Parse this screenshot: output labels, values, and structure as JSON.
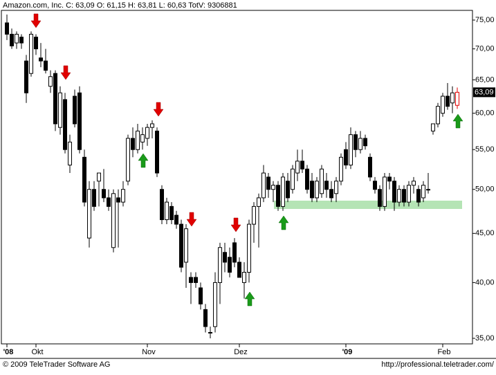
{
  "chart_data": {
    "type": "candlestick",
    "title": "Amazon.com, Inc. C: 63,09 O: 61,15 H: 63,81 L: 60,63 TotV: 9306881",
    "footer_left": "© 2009 TeleTrader Software AG",
    "footer_right": "http://professional.teletrader.com/",
    "log_scale": true,
    "ylim": [
      34.54,
      76.76
    ],
    "yticks": [
      {
        "value": 35,
        "label": "35,00"
      },
      {
        "value": 40,
        "label": "40,00"
      },
      {
        "value": 45,
        "label": "45,00"
      },
      {
        "value": 50,
        "label": "50,00"
      },
      {
        "value": 55,
        "label": "55,00"
      },
      {
        "value": 60,
        "label": "60,00"
      },
      {
        "value": 65,
        "label": "65,00"
      },
      {
        "value": 70,
        "label": "70,00"
      },
      {
        "value": 75,
        "label": "75,00"
      }
    ],
    "price_tag": {
      "value": 63.09,
      "label": "63,09"
    },
    "up_color": "#ffffff",
    "down_color": "#000000",
    "last_color": "#e00000",
    "categories": [
      "'08",
      null,
      null,
      null,
      null,
      null,
      "Okt",
      null,
      null,
      null,
      null,
      null,
      null,
      null,
      null,
      null,
      null,
      null,
      null,
      null,
      null,
      null,
      null,
      null,
      null,
      null,
      null,
      null,
      null,
      "Nov",
      null,
      null,
      null,
      null,
      null,
      null,
      null,
      null,
      null,
      null,
      null,
      null,
      null,
      null,
      null,
      null,
      null,
      null,
      "Dez",
      null,
      null,
      null,
      null,
      null,
      null,
      null,
      null,
      null,
      null,
      null,
      null,
      null,
      null,
      null,
      null,
      null,
      null,
      null,
      null,
      null,
      "'09",
      null,
      null,
      null,
      null,
      null,
      null,
      null,
      null,
      null,
      null,
      null,
      null,
      null,
      null,
      null,
      null,
      null,
      null,
      null,
      "Feb",
      null,
      null,
      null
    ],
    "open": [
      74.5,
      72.5,
      71,
      72,
      68,
      66,
      72,
      68.5,
      68,
      64,
      66,
      58,
      62,
      53,
      62.5,
      63,
      54,
      44.5,
      50,
      51,
      50,
      49,
      43.5,
      49,
      48.5,
      51,
      56.5,
      55,
      56,
      56.5,
      58,
      57.5,
      50,
      46.5,
      48,
      47,
      46,
      42,
      40.5,
      40.5,
      39.5,
      37.5,
      35.5,
      36,
      40,
      43,
      42.5,
      44,
      42,
      40,
      41,
      46,
      48,
      49,
      51.5,
      50,
      50.5,
      48,
      51,
      50,
      52,
      53.5,
      52.5,
      51,
      49,
      49.5,
      51,
      50,
      49.5,
      51,
      55,
      53,
      57,
      55,
      56.5,
      54,
      51,
      50,
      48,
      51.5,
      51,
      48.5,
      50,
      48.5,
      50.5,
      50,
      49,
      50,
      57.5,
      58.5,
      60,
      62.5,
      61.5,
      61.15
    ],
    "high": [
      76,
      73.5,
      73,
      72.5,
      69,
      73,
      72.5,
      71,
      70,
      66.5,
      66.5,
      64,
      63,
      57,
      63.5,
      64,
      55,
      51,
      51,
      52,
      52.5,
      50,
      50,
      50,
      51,
      57,
      58,
      58.5,
      58,
      58.5,
      59,
      58,
      50.5,
      49,
      48.5,
      47.5,
      46.5,
      46,
      41,
      41,
      40,
      38,
      36,
      41,
      44,
      44,
      43.5,
      44.5,
      42.5,
      42,
      46.5,
      48.5,
      49.5,
      53,
      52,
      51,
      51,
      52,
      52,
      53,
      55,
      55,
      53,
      52,
      51.5,
      53,
      52,
      51,
      51.5,
      54.5,
      56,
      58,
      57.5,
      57.5,
      57,
      54.5,
      51.5,
      50.5,
      52,
      52,
      51.5,
      50.5,
      50.5,
      51,
      51.5,
      50.5,
      51,
      52,
      58.5,
      61.5,
      63,
      64.5,
      64,
      63.81
    ],
    "low": [
      71.5,
      70,
      70,
      70,
      61.5,
      65.5,
      69,
      67,
      66,
      63,
      57.5,
      57,
      54.5,
      52,
      58,
      54.5,
      48,
      43.5,
      47.5,
      48,
      48.5,
      47.5,
      43,
      43.5,
      48,
      50.5,
      54,
      54.5,
      55,
      55.5,
      56.5,
      51.5,
      46,
      46,
      46,
      45.5,
      41,
      39.5,
      38,
      39.5,
      37.5,
      35.5,
      35,
      35.5,
      38,
      41,
      40.5,
      41.5,
      40.5,
      38.5,
      40,
      44,
      43.5,
      48.5,
      49,
      48.5,
      47.5,
      47.5,
      48.5,
      49.5,
      51,
      52,
      49.5,
      48.5,
      48.5,
      49,
      49,
      48.5,
      48.5,
      50.5,
      52.5,
      52.5,
      54,
      54.5,
      55,
      51,
      49.5,
      47.5,
      47.5,
      50,
      47.5,
      48,
      48,
      48,
      49.5,
      48,
      48.5,
      49.5,
      57,
      58,
      59.5,
      60.5,
      60,
      60.63
    ],
    "close": [
      72.5,
      70.5,
      72.5,
      71,
      63,
      72.5,
      70,
      68,
      66.5,
      65.5,
      58.5,
      63,
      55,
      56,
      58.5,
      55,
      48.5,
      50,
      48,
      52,
      49,
      48,
      49.5,
      48.5,
      50,
      56.5,
      55,
      57.5,
      57,
      58,
      58.5,
      52,
      46.5,
      48.5,
      46.5,
      46,
      41.5,
      45.5,
      40,
      40,
      38,
      36,
      35.5,
      40,
      43.5,
      42,
      41,
      42,
      40.5,
      41,
      46,
      48,
      49,
      52,
      50,
      50.5,
      48,
      51.5,
      49,
      52.5,
      53.5,
      52.5,
      50,
      49,
      51,
      52.5,
      50,
      49,
      51,
      54,
      53,
      57,
      55,
      56.5,
      55.5,
      51.5,
      50,
      48,
      51.5,
      51,
      48.5,
      50,
      48.5,
      50.5,
      51,
      48.5,
      50.5,
      50,
      58.5,
      61,
      62.5,
      61,
      63,
      63.09
    ]
  }
}
